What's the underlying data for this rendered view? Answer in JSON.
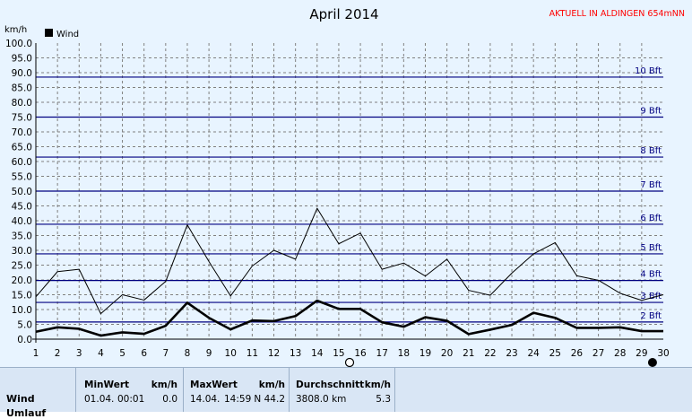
{
  "header": {
    "title": "April 2014",
    "station": "AKTUELL IN ALDINGEN 654mNN",
    "unit": "km/h",
    "station_color": "#ff0000"
  },
  "chart_data": {
    "type": "line",
    "title": "April 2014",
    "ylabel": "km/h",
    "xlabel": "",
    "ylim": [
      0,
      100
    ],
    "y_ticks": [
      "0.0",
      "5.0",
      "10.0",
      "15.0",
      "20.0",
      "25.0",
      "30.0",
      "35.0",
      "40.0",
      "45.0",
      "50.0",
      "55.0",
      "60.0",
      "65.0",
      "70.0",
      "75.0",
      "80.0",
      "85.0",
      "90.0",
      "95.0",
      "100.0"
    ],
    "x": [
      1,
      2,
      3,
      4,
      5,
      6,
      7,
      8,
      9,
      10,
      11,
      12,
      13,
      14,
      15,
      16,
      17,
      18,
      19,
      20,
      21,
      22,
      23,
      24,
      25,
      26,
      27,
      28,
      29,
      30
    ],
    "legend": [
      "Wind"
    ],
    "legend_placement": "top-left",
    "grid": true,
    "series": [
      {
        "name": "Wind",
        "style": "bold",
        "values": [
          2.5,
          4,
          3.5,
          1.2,
          2.3,
          1.8,
          4.5,
          12.3,
          7.2,
          3.3,
          6.3,
          6.1,
          7.8,
          13,
          10.2,
          10.2,
          5.7,
          4.2,
          7.4,
          6.2,
          1.7,
          3.2,
          4.8,
          8.9,
          7.2,
          3.8,
          3.8,
          4,
          2.7,
          2.7
        ]
      },
      {
        "name": "",
        "style": "thin",
        "values": [
          14.3,
          22.8,
          23.6,
          8.6,
          15,
          13.2,
          19.5,
          38.6,
          26.2,
          14.6,
          24.7,
          30,
          27,
          44.2,
          32.2,
          35.8,
          23.6,
          25.7,
          21.3,
          27,
          16.5,
          14.8,
          22.3,
          28.8,
          32.6,
          21.4,
          19.9,
          15.5,
          13.1,
          15
        ]
      }
    ],
    "beaufort_lines": [
      {
        "label": "2 Bft",
        "value": 5.8
      },
      {
        "label": "3 Bft",
        "value": 12.4
      },
      {
        "label": "4 Bft",
        "value": 19.8
      },
      {
        "label": "5 Bft",
        "value": 28.8
      },
      {
        "label": "6 Bft",
        "value": 38.8
      },
      {
        "label": "7 Bft",
        "value": 50.0
      },
      {
        "label": "8 Bft",
        "value": 61.5
      },
      {
        "label": "9 Bft",
        "value": 75.0
      },
      {
        "label": "10 Bft",
        "value": 88.5
      }
    ],
    "moon_markers": [
      {
        "day": 15.5,
        "phase": "full-moon"
      },
      {
        "day": 29.5,
        "phase": "new-moon"
      }
    ],
    "colors": {
      "background": "#e8f4ff",
      "grid": "#808080",
      "beaufort": "#000080",
      "series": "#000000"
    }
  },
  "footer": {
    "row1": "Wind",
    "row2": "Umlauf",
    "min": {
      "header": "MinWert",
      "unit": "km/h",
      "date": "01.04.",
      "time": "00:01",
      "value": "0.0"
    },
    "max": {
      "header": "MaxWert",
      "unit": "km/h",
      "date": "14.04.",
      "time": "14:59",
      "value": "N 44.2"
    },
    "avg": {
      "header": "Durchschnitt",
      "unit": "km/h",
      "dist": "3808.0 km",
      "value": "5.3"
    }
  }
}
